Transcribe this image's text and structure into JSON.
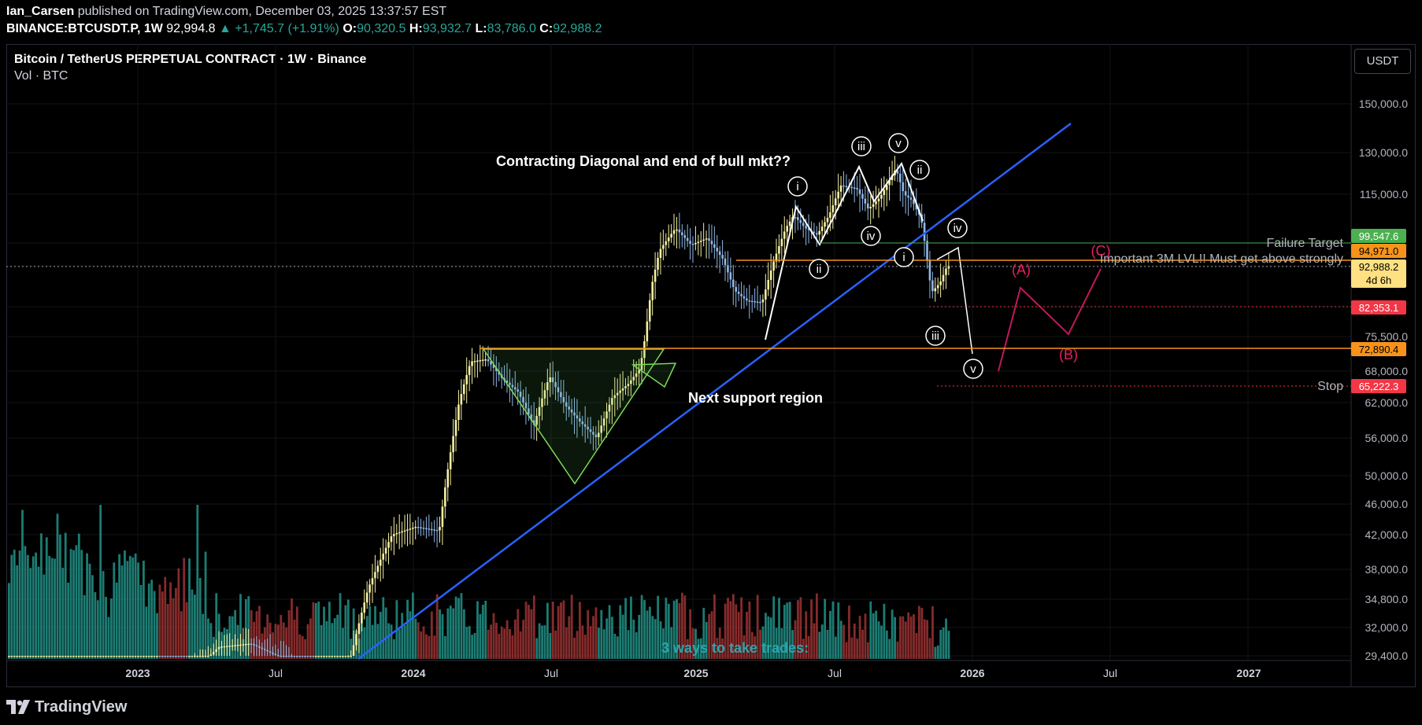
{
  "header": {
    "author": "Ian_Carsen",
    "published_text": "published on TradingView.com, December 03, 2025 13:37:57 EST",
    "symbol": "BINANCE:BTCUSDT.P, 1W",
    "last": "92,994.8",
    "change": "+1,745.7 (+1.91%)",
    "open_label": "O:",
    "open": "90,320.5",
    "high_label": "H:",
    "high": "93,932.7",
    "low_label": "L:",
    "low": "83,786.0",
    "close_label": "C:",
    "close": "92,988.2"
  },
  "chart_title": "Bitcoin / TetherUS PERPETUAL CONTRACT · 1W · Binance",
  "volume_label": "Vol · BTC",
  "currency_button": "USDT",
  "footer_brand": "TradingView",
  "annotations": {
    "main": "Contracting Diagonal and end of bull mkt??",
    "support": "Next support region",
    "failure": "Failure Target",
    "important": "Important 3M LVL!! Must get above strongly",
    "stop": "Stop",
    "trades": "3 ways to take trades:"
  },
  "colors": {
    "up": "#f5f0a0",
    "down": "#90b8e8",
    "vol_up": "#26a69a",
    "vol_down": "#b23a3a",
    "trendline": "#2962ff",
    "triangle": "#4caf50",
    "orange_level": "#f7931a",
    "abc": "#e91e63",
    "green_price": "#4caf50",
    "red_price": "#f23645"
  },
  "chart_data": {
    "type": "candlestick",
    "y_scale": "log",
    "ylim": [
      29400,
      170000
    ],
    "x_ticks": [
      "2023",
      "Jul",
      "2024",
      "Jul",
      "2025",
      "Jul",
      "2026",
      "Jul",
      "2027"
    ],
    "y_ticks": [
      "150,000.0",
      "130,000.0",
      "115,000.0",
      "75,500.0",
      "68,000.0",
      "62,000.0",
      "56,000.0",
      "50,000.0",
      "46,000.0",
      "42,000.0",
      "38,000.0",
      "34,800.0",
      "32,000.0",
      "29,400.0"
    ],
    "price_labels": [
      {
        "label": "99,547.6",
        "color": "green"
      },
      {
        "label": "94,971.0",
        "color": "orange"
      },
      {
        "label": "92,988.2",
        "sub": "4d 6h",
        "color": "current"
      },
      {
        "label": "82,353.1",
        "color": "red"
      },
      {
        "label": "72,890.4",
        "color": "orange"
      },
      {
        "label": "65,222.3",
        "color": "red"
      }
    ],
    "wave_labels": [
      "i",
      "ii",
      "iii",
      "iv",
      "v",
      "ii",
      "iv",
      "i",
      "iii",
      "v"
    ],
    "abc_labels": [
      "(A)",
      "(B)",
      "(C)"
    ],
    "levels": {
      "failure_target": 99547.6,
      "important": 94971.0,
      "current": 92988.2,
      "red_dotted": 82353.1,
      "support": 72890.4,
      "stop": 65222.3
    }
  }
}
